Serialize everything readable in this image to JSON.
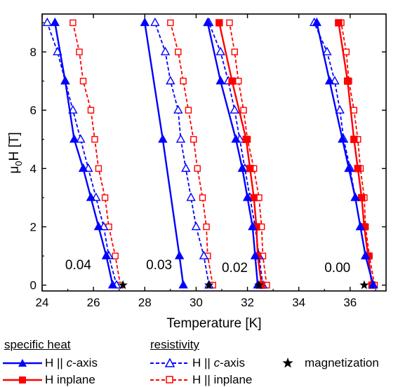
{
  "chart_data": {
    "type": "line",
    "xlabel": "Temperature [K]",
    "ylabel_main": "μ",
    "ylabel_sub": "0",
    "ylabel_rest": "H [T]",
    "xlim": [
      24,
      37.4
    ],
    "ylim": [
      -0.2,
      9.3
    ],
    "xticks": [
      24,
      26,
      28,
      30,
      32,
      34,
      36
    ],
    "yticks": [
      0,
      2,
      4,
      6,
      8
    ],
    "grid": false,
    "colors": {
      "blue": "#0000ff",
      "red": "#ff0000",
      "black": "#000000"
    },
    "groups": [
      {
        "label": "0.04",
        "series": [
          {
            "name": "specific heat H || c-axis",
            "style": "solid-filled-triangle",
            "color": "blue",
            "points": [
              [
                26.75,
                0
              ],
              [
                26.5,
                1
              ],
              [
                26.2,
                2
              ],
              [
                25.9,
                3
              ],
              [
                25.6,
                4
              ],
              [
                25.25,
                5
              ],
              [
                24.9,
                7
              ],
              [
                24.5,
                9
              ]
            ]
          },
          {
            "name": "resistivity H || c-axis",
            "style": "dashed-open-triangle",
            "color": "blue",
            "points": [
              [
                26.9,
                0
              ],
              [
                26.6,
                1
              ],
              [
                26.4,
                2
              ],
              [
                26.1,
                3
              ],
              [
                25.8,
                4
              ],
              [
                25.5,
                5
              ],
              [
                25.2,
                6
              ],
              [
                24.9,
                7
              ],
              [
                24.6,
                8
              ],
              [
                24.2,
                9
              ]
            ]
          },
          {
            "name": "resistivity H || inplane",
            "style": "dashed-open-square",
            "color": "red",
            "points": [
              [
                27.05,
                0
              ],
              [
                26.85,
                1
              ],
              [
                26.6,
                2
              ],
              [
                26.45,
                3
              ],
              [
                26.2,
                4
              ],
              [
                26.05,
                5
              ],
              [
                25.9,
                6
              ],
              [
                25.6,
                7
              ],
              [
                25.45,
                8
              ],
              [
                25.2,
                9
              ]
            ]
          }
        ]
      },
      {
        "label": "0.03",
        "series": [
          {
            "name": "specific heat H || c-axis",
            "style": "solid-filled-triangle",
            "color": "blue",
            "points": [
              [
                29.5,
                0
              ],
              [
                29.35,
                1
              ],
              [
                28.7,
                5
              ],
              [
                28.0,
                9
              ]
            ]
          },
          {
            "name": "resistivity H || c-axis",
            "style": "dashed-open-triangle",
            "color": "blue",
            "points": [
              [
                30.5,
                0
              ],
              [
                30.3,
                1
              ],
              [
                30.0,
                2
              ],
              [
                29.8,
                3
              ],
              [
                29.6,
                4
              ],
              [
                29.4,
                5
              ],
              [
                29.3,
                6
              ],
              [
                29.0,
                7
              ],
              [
                28.8,
                8
              ],
              [
                28.4,
                9
              ]
            ]
          },
          {
            "name": "resistivity H || inplane",
            "style": "dashed-open-square",
            "color": "red",
            "points": [
              [
                30.65,
                0
              ],
              [
                30.45,
                1
              ],
              [
                30.4,
                2
              ],
              [
                30.25,
                3
              ],
              [
                30.05,
                4
              ],
              [
                29.9,
                5
              ],
              [
                29.7,
                6
              ],
              [
                29.5,
                7
              ],
              [
                29.3,
                8
              ],
              [
                29.0,
                9
              ]
            ]
          }
        ]
      },
      {
        "label": "0.02",
        "series": [
          {
            "name": "specific heat H || c-axis",
            "style": "solid-filled-triangle",
            "color": "blue",
            "points": [
              [
                32.4,
                0
              ],
              [
                32.3,
                1
              ],
              [
                32.2,
                2
              ],
              [
                32.0,
                3
              ],
              [
                31.8,
                4
              ],
              [
                31.55,
                5
              ],
              [
                30.95,
                7
              ],
              [
                30.45,
                9
              ]
            ]
          },
          {
            "name": "specific heat H inplane",
            "style": "solid-filled-square",
            "color": "red",
            "points": [
              [
                32.55,
                0
              ],
              [
                32.4,
                1
              ],
              [
                32.35,
                2
              ],
              [
                32.25,
                3
              ],
              [
                32.1,
                4
              ],
              [
                31.95,
                5
              ],
              [
                31.4,
                7
              ],
              [
                30.9,
                9
              ]
            ]
          },
          {
            "name": "resistivity H || c-axis",
            "style": "dashed-open-triangle",
            "color": "blue",
            "points": [
              [
                32.6,
                0
              ],
              [
                32.45,
                1
              ],
              [
                32.3,
                2
              ],
              [
                32.1,
                3
              ],
              [
                31.9,
                4
              ],
              [
                31.7,
                5
              ],
              [
                31.5,
                6
              ],
              [
                31.25,
                7
              ],
              [
                30.95,
                8
              ],
              [
                30.5,
                9
              ]
            ]
          },
          {
            "name": "resistivity H || inplane",
            "style": "dashed-open-square",
            "color": "red",
            "points": [
              [
                32.75,
                0
              ],
              [
                32.6,
                1
              ],
              [
                32.55,
                2
              ],
              [
                32.45,
                3
              ],
              [
                32.25,
                4
              ],
              [
                32.0,
                5
              ],
              [
                31.85,
                6
              ],
              [
                31.65,
                7
              ],
              [
                31.5,
                8
              ],
              [
                31.3,
                9
              ]
            ]
          }
        ]
      },
      {
        "label": "0.00",
        "series": [
          {
            "name": "specific heat H || c-axis",
            "style": "solid-filled-triangle",
            "color": "blue",
            "points": [
              [
                36.9,
                0
              ],
              [
                36.6,
                1
              ],
              [
                36.4,
                2
              ],
              [
                36.2,
                3
              ],
              [
                35.95,
                4
              ],
              [
                35.7,
                5
              ],
              [
                35.2,
                7
              ],
              [
                34.7,
                9
              ]
            ]
          },
          {
            "name": "specific heat H inplane",
            "style": "solid-filled-square",
            "color": "red",
            "points": [
              [
                36.85,
                0
              ],
              [
                36.7,
                1
              ],
              [
                36.55,
                2
              ],
              [
                36.45,
                3
              ],
              [
                36.3,
                4
              ],
              [
                36.15,
                5
              ],
              [
                35.9,
                7
              ],
              [
                35.55,
                9
              ]
            ]
          },
          {
            "name": "resistivity H || c-axis",
            "style": "dashed-open-triangle",
            "color": "blue",
            "points": [
              [
                36.9,
                0
              ],
              [
                36.6,
                1
              ],
              [
                36.4,
                2
              ],
              [
                36.2,
                3
              ],
              [
                36.0,
                4
              ],
              [
                35.75,
                5
              ],
              [
                35.6,
                6
              ],
              [
                35.4,
                7
              ],
              [
                35.1,
                8
              ],
              [
                34.6,
                9
              ]
            ]
          },
          {
            "name": "resistivity H || inplane",
            "style": "dashed-open-square",
            "color": "red",
            "points": [
              [
                36.95,
                0
              ],
              [
                36.75,
                1
              ],
              [
                36.6,
                2
              ],
              [
                36.55,
                3
              ],
              [
                36.4,
                4
              ],
              [
                36.3,
                5
              ],
              [
                36.15,
                6
              ],
              [
                35.95,
                7
              ],
              [
                35.85,
                8
              ],
              [
                35.65,
                9
              ]
            ]
          }
        ]
      }
    ],
    "magnetization_points": [
      27.15,
      30.5,
      32.45,
      36.55
    ],
    "group_labels": [
      {
        "text": "0.04",
        "x": 24.9,
        "y": 0.55
      },
      {
        "text": "0.03",
        "x": 28.05,
        "y": 0.55
      },
      {
        "text": "0.02",
        "x": 31.0,
        "y": 0.45
      },
      {
        "text": "0.00",
        "x": 35.0,
        "y": 0.45
      }
    ]
  },
  "legend": {
    "specific_heat_heading": "specific heat",
    "resistivity_heading": "resistivity",
    "sh_c_prefix": "H || ",
    "sh_c_italic": "c",
    "sh_c_suffix": "-axis",
    "sh_inplane": "H inplane",
    "res_c_prefix": "H || ",
    "res_c_italic": "c",
    "res_c_suffix": "-axis",
    "res_inplane": "H || inplane",
    "magnetization": "magnetization"
  }
}
